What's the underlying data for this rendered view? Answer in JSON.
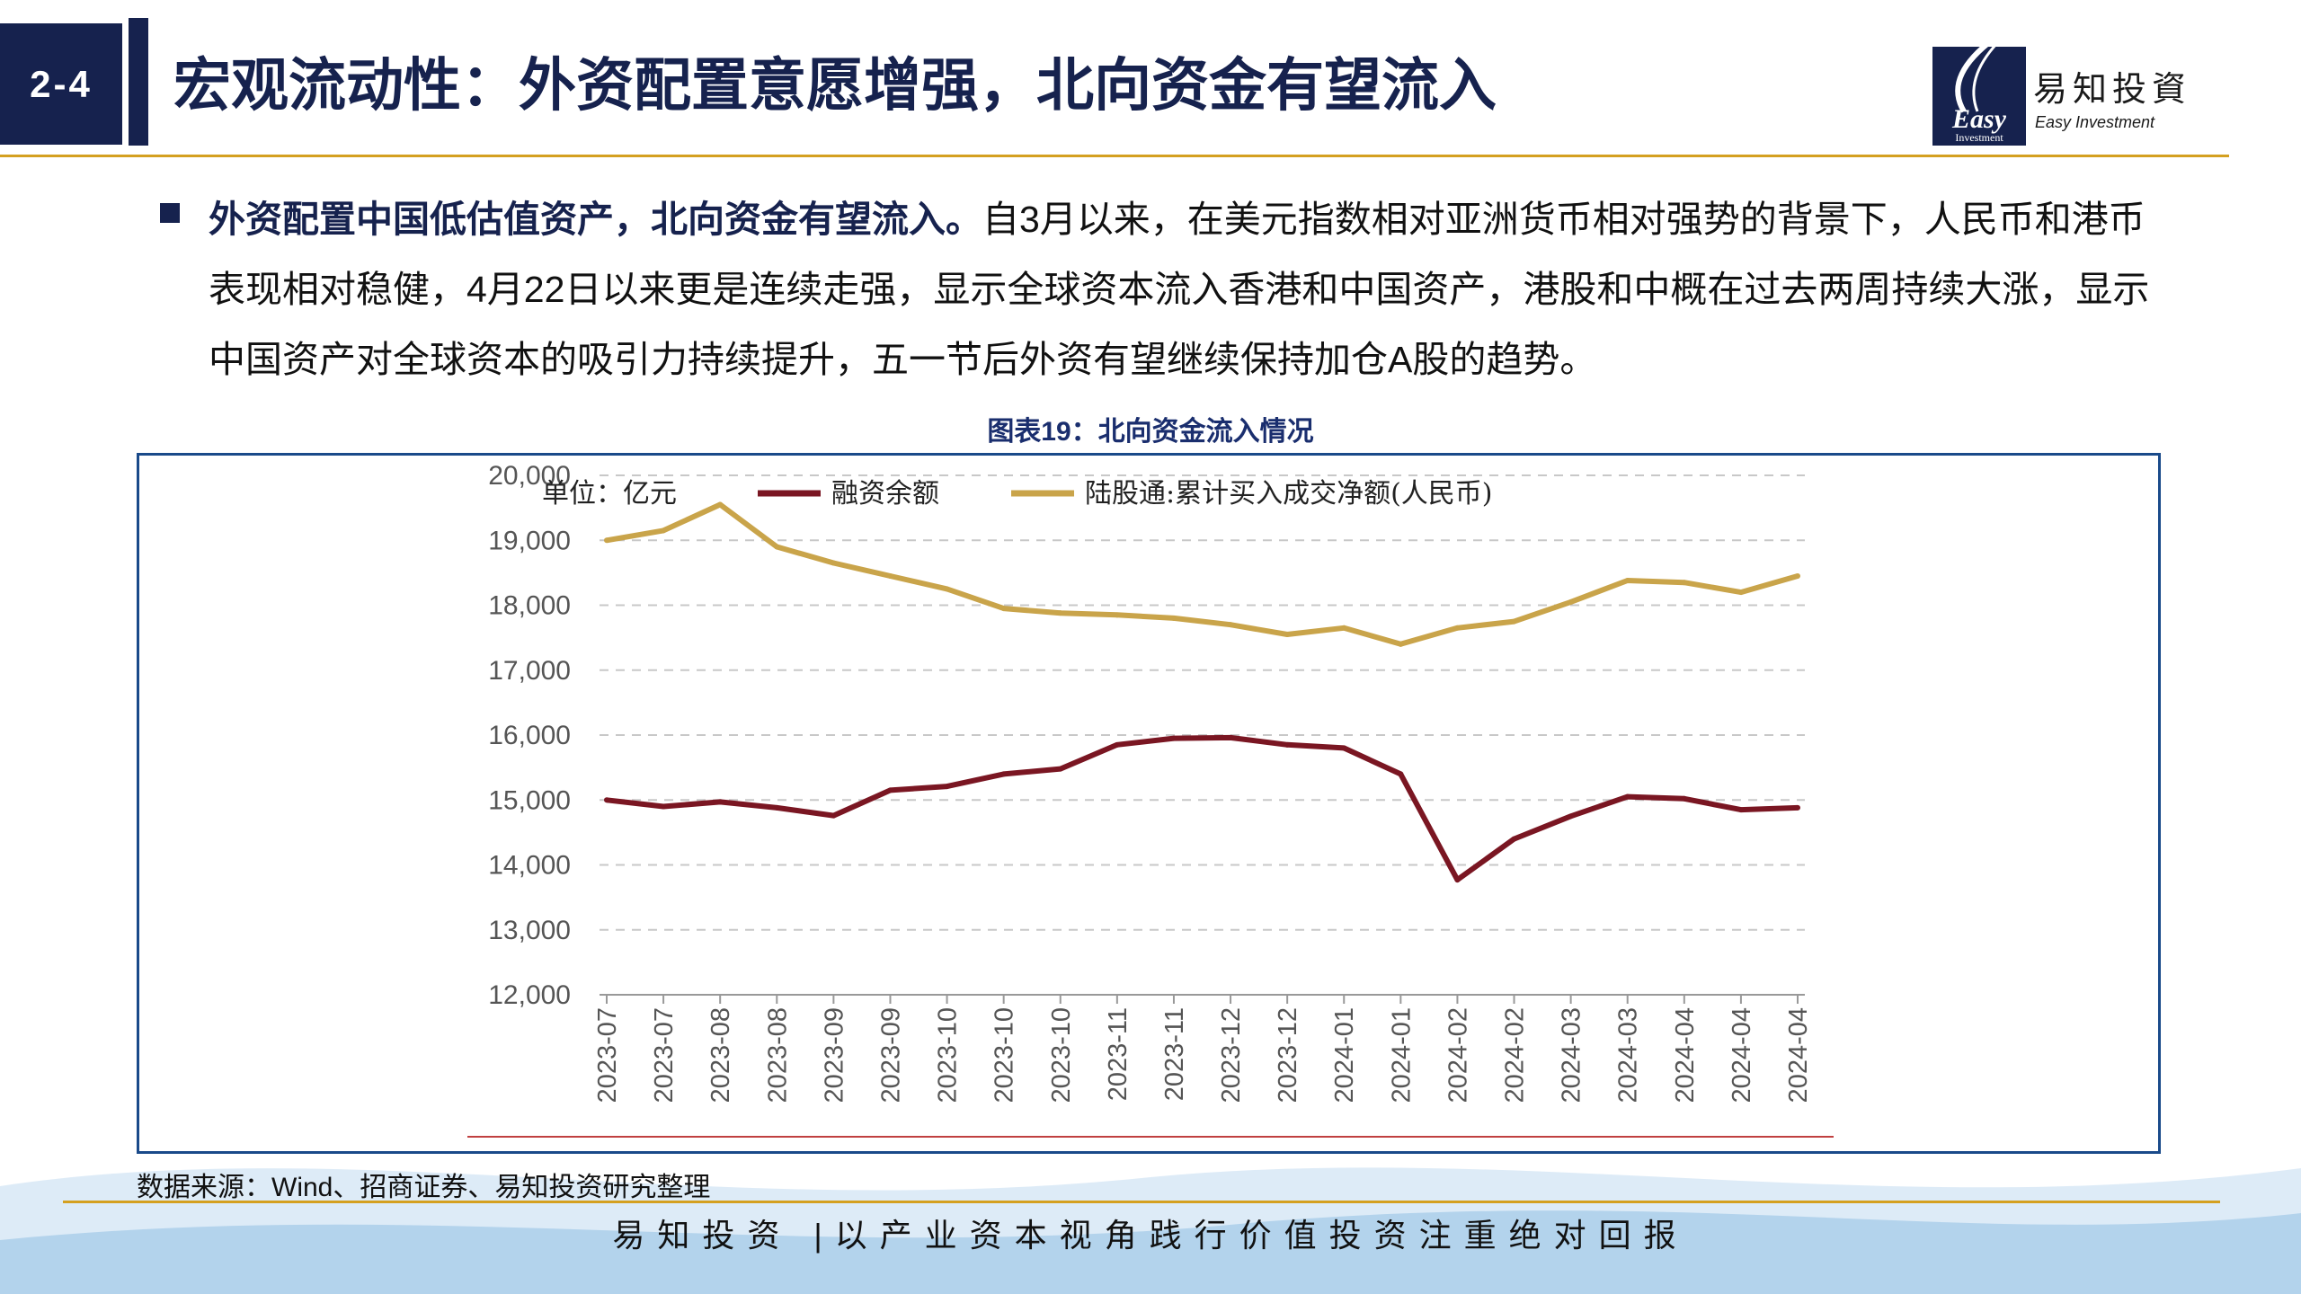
{
  "header": {
    "section": "2-4",
    "title": "宏观流动性：外资配置意愿增强，北向资金有望流入",
    "logo_cn": "易知投資",
    "logo_en": "Easy Investment",
    "logo_mark_text": "Easy",
    "logo_mark_sub": "Investment"
  },
  "body": {
    "lead": "外资配置中国低估值资产，北向资金有望流入。",
    "text": "自3月以来，在美元指数相对亚洲货币相对强势的背景下，人民币和港币表现相对稳健，4月22日以来更是连续走强，显示全球资本流入香港和中国资产，港股和中概在过去两周持续大涨，显示中国资产对全球资本的吸引力持续提升，五一节后外资有望继续保持加仓A股的趋势。"
  },
  "figure": {
    "title": "图表19：北向资金流入情况",
    "source": "数据来源：Wind、招商证券、易知投资研究整理"
  },
  "footer": {
    "slogan": "易知投资 |以产业资本视角践行价值投资注重绝对回报"
  },
  "colors": {
    "navy": "#16224e",
    "gold": "#d4a020",
    "series_margin": "#7a1622",
    "series_northbound": "#c9a44a"
  },
  "chart_data": {
    "type": "line",
    "unit_label": "单位：亿元",
    "ylim": [
      12000,
      20000
    ],
    "yticks": [
      12000,
      13000,
      14000,
      15000,
      16000,
      17000,
      18000,
      19000,
      20000
    ],
    "ytick_labels": [
      "12,000",
      "13,000",
      "14,000",
      "15,000",
      "16,000",
      "17,000",
      "18,000",
      "19,000",
      "20,000"
    ],
    "grid": true,
    "legend_position": "top",
    "categories": [
      "2023-07",
      "2023-07",
      "2023-08",
      "2023-08",
      "2023-09",
      "2023-09",
      "2023-10",
      "2023-10",
      "2023-10",
      "2023-11",
      "2023-11",
      "2023-12",
      "2023-12",
      "2024-01",
      "2024-01",
      "2024-02",
      "2024-02",
      "2024-03",
      "2024-03",
      "2024-04",
      "2024-04",
      "2024-04"
    ],
    "series": [
      {
        "name": "融资余额",
        "color": "#7a1622",
        "values": [
          15000,
          14900,
          14970,
          14880,
          14760,
          15150,
          15210,
          15400,
          15480,
          15850,
          15950,
          15960,
          15850,
          15800,
          15400,
          13770,
          14400,
          14750,
          15050,
          15020,
          14850,
          14880
        ]
      },
      {
        "name": "陆股通:累计买入成交净额(人民币)",
        "color": "#c9a44a",
        "values": [
          19000,
          19150,
          19550,
          18900,
          18650,
          18450,
          18250,
          17950,
          17880,
          17850,
          17800,
          17700,
          17550,
          17650,
          17400,
          17650,
          17750,
          18050,
          18380,
          18350,
          18200,
          18450
        ]
      }
    ]
  }
}
